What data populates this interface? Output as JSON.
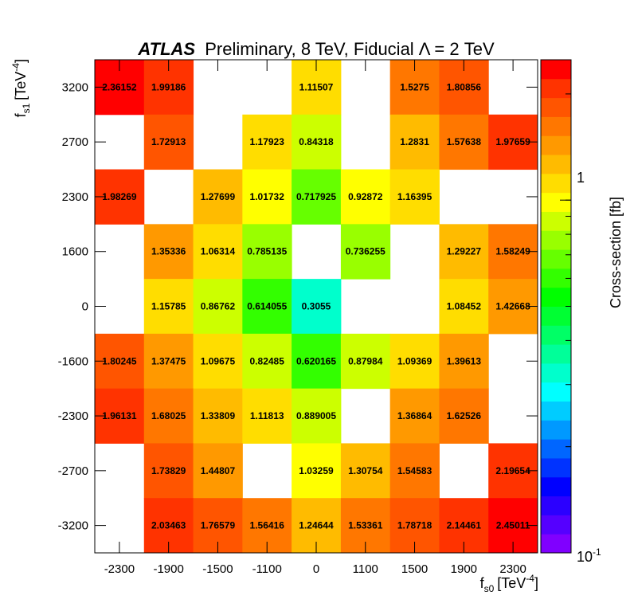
{
  "chart_data": {
    "type": "heatmap",
    "title_bold": "ATLAS",
    "title_rest": "Preliminary, 8 TeV, Fiducial Λ = 2 TeV",
    "xlabel_main": "f",
    "xlabel_sub": "s0",
    "xlabel_unit": "[TeV",
    "xlabel_exp": "-4",
    "xlabel_close": "]",
    "ylabel_main": "f",
    "ylabel_sub": "s1",
    "ylabel_unit": "[TeV",
    "ylabel_exp": "-4",
    "ylabel_close": "]",
    "zlabel": "Cross-section [fb]",
    "z_scale": "log",
    "z_range": [
      0.1,
      2.5
    ],
    "z_tick_1": "1",
    "z_tick_min_base": "10",
    "z_tick_min_exp": "-1",
    "x_categories": [
      "-2300",
      "-1900",
      "-1500",
      "-1100",
      "0",
      "1100",
      "1500",
      "1900",
      "2300"
    ],
    "y_categories": [
      "3200",
      "2700",
      "2300",
      "1600",
      "0",
      "-1600",
      "-2300",
      "-2700",
      "-3200"
    ],
    "values": [
      [
        "2.36152",
        "1.99186",
        null,
        null,
        "1.11507",
        null,
        "1.5275",
        "1.80856",
        null
      ],
      [
        null,
        "1.72913",
        null,
        "1.17923",
        "0.84318",
        null,
        "1.2831",
        "1.57638",
        "1.97659"
      ],
      [
        "1.98269",
        null,
        "1.27699",
        "1.01732",
        "0.717925",
        "0.92872",
        "1.16395",
        null,
        null
      ],
      [
        null,
        "1.35336",
        "1.06314",
        "0.785135",
        null,
        "0.736255",
        null,
        "1.29227",
        "1.58249"
      ],
      [
        null,
        "1.15785",
        "0.86762",
        "0.614055",
        "0.3055",
        null,
        null,
        "1.08452",
        "1.42668"
      ],
      [
        "1.80245",
        "1.37475",
        "1.09675",
        "0.82485",
        "0.620165",
        "0.87984",
        "1.09369",
        "1.39613",
        null
      ],
      [
        "1.96131",
        "1.68025",
        "1.33809",
        "1.11813",
        "0.889005",
        null,
        "1.36864",
        "1.62526",
        null
      ],
      [
        null,
        "1.73829",
        "1.44807",
        null,
        "1.03259",
        "1.30754",
        "1.54583",
        null,
        "2.19654"
      ],
      [
        null,
        "2.03463",
        "1.76579",
        "1.56416",
        "1.24644",
        "1.53361",
        "1.78718",
        "2.14461",
        "2.45011"
      ]
    ],
    "palette": [
      "#8000ff",
      "#5500ff",
      "#2b00ff",
      "#0000ff",
      "#0033ff",
      "#0066ff",
      "#0099ff",
      "#00ccff",
      "#00ffff",
      "#00ffcc",
      "#00ff99",
      "#00ff66",
      "#00ff33",
      "#00ff00",
      "#33ff00",
      "#66ff00",
      "#99ff00",
      "#ccff00",
      "#ffff00",
      "#ffdd00",
      "#ffbb00",
      "#ff9900",
      "#ff7700",
      "#ff5500",
      "#ff3300",
      "#ff0000"
    ]
  }
}
